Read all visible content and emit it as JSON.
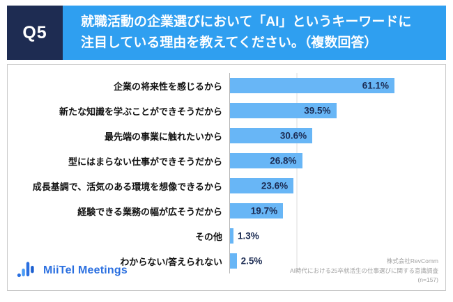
{
  "header": {
    "qno": "Q5",
    "title_line1": "就職活動の企業選びにおいて「AI」というキーワードに",
    "title_line2": "注目している理由を教えてください。（複数回答）"
  },
  "chart_data": {
    "type": "bar",
    "orientation": "horizontal",
    "title": "就職活動の企業選びにおいて「AI」というキーワードに注目している理由を教えてください。（複数回答）",
    "categories": [
      "企業の将来性を感じるから",
      "新たな知識を学ぶことができそうだから",
      "最先端の事業に触れたいから",
      "型にはまらない仕事ができそうだから",
      "成長基調で、活気のある環境を想像できるから",
      "経験できる業務の幅が広そうだから",
      "その他",
      "わからない/答えられない"
    ],
    "values": [
      61.1,
      39.5,
      30.6,
      26.8,
      23.6,
      19.7,
      1.3,
      2.5
    ],
    "value_labels": [
      "61.1%",
      "39.5%",
      "30.6%",
      "26.8%",
      "23.6%",
      "19.7%",
      "1.3%",
      "2.5%"
    ],
    "xlim": [
      0,
      80
    ],
    "grid": "single-faint-line",
    "legend": "none",
    "bar_color": "#68b6f6",
    "value_label_color": "#1b2b52"
  },
  "footer": {
    "logo_text": "MiiTel Meetings",
    "source_lines": [
      "株式会社RevComm",
      "AI時代における25卒就活生の仕事選びに関する意識調査",
      "(n=157)"
    ]
  }
}
